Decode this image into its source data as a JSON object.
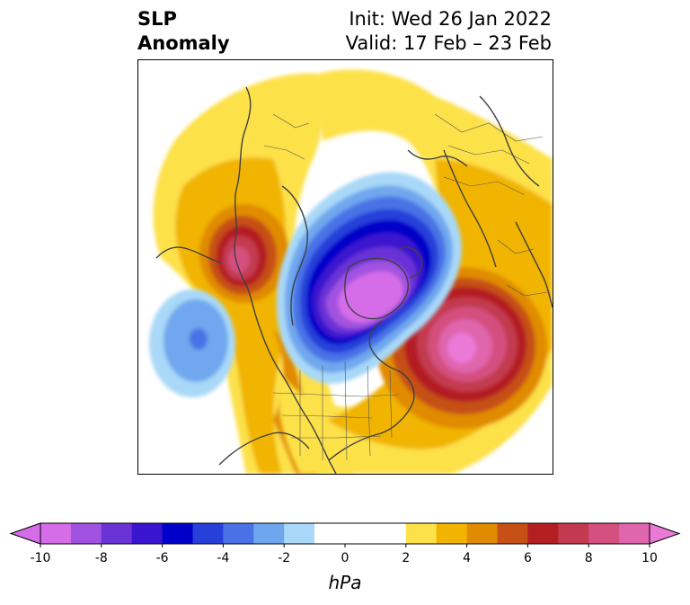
{
  "title": {
    "left_line1": "SLP",
    "left_line2": "Anomaly",
    "init": "Init: Wed 26 Jan 2022",
    "valid": "Valid: 17 Feb – 23 Feb"
  },
  "colorbar": {
    "unit": "hPa",
    "ticks": [
      "-10",
      "-8",
      "-6",
      "-4",
      "-2",
      "0",
      "2",
      "4",
      "6",
      "8",
      "10"
    ],
    "levels": [
      -10,
      -9,
      -8,
      -7,
      -6,
      -5,
      -4,
      -3,
      -2,
      -1,
      1,
      2,
      3,
      4,
      5,
      6,
      7,
      8,
      9,
      10
    ],
    "colors": [
      "#d66de8",
      "#a152e0",
      "#6a33d6",
      "#3a15cf",
      "#0000c9",
      "#2640d9",
      "#4a72e6",
      "#6fa7ee",
      "#a9d8f8",
      "#ffffff",
      "#ffffff",
      "#fde14a",
      "#f1b400",
      "#e08b00",
      "#c65015",
      "#b41f22",
      "#c33a50",
      "#d4507e",
      "#df65ad",
      "#ea7ad6"
    ],
    "under_color": "#d66de8",
    "over_color": "#ea7ad6"
  },
  "map": {
    "type": "north-polar-stereographic",
    "field": "sea level pressure anomaly",
    "features": [
      {
        "kind": "negative-anomaly",
        "region": "Arctic / Greenland / Canadian Archipelago",
        "min_hpa": -10
      },
      {
        "kind": "negative-anomaly",
        "region": "North Pacific",
        "min_hpa": -5
      },
      {
        "kind": "positive-anomaly",
        "region": "North Atlantic",
        "max_hpa": 9
      },
      {
        "kind": "positive-anomaly",
        "region": "Bering Sea / Kamchatka",
        "max_hpa": 8
      }
    ]
  }
}
